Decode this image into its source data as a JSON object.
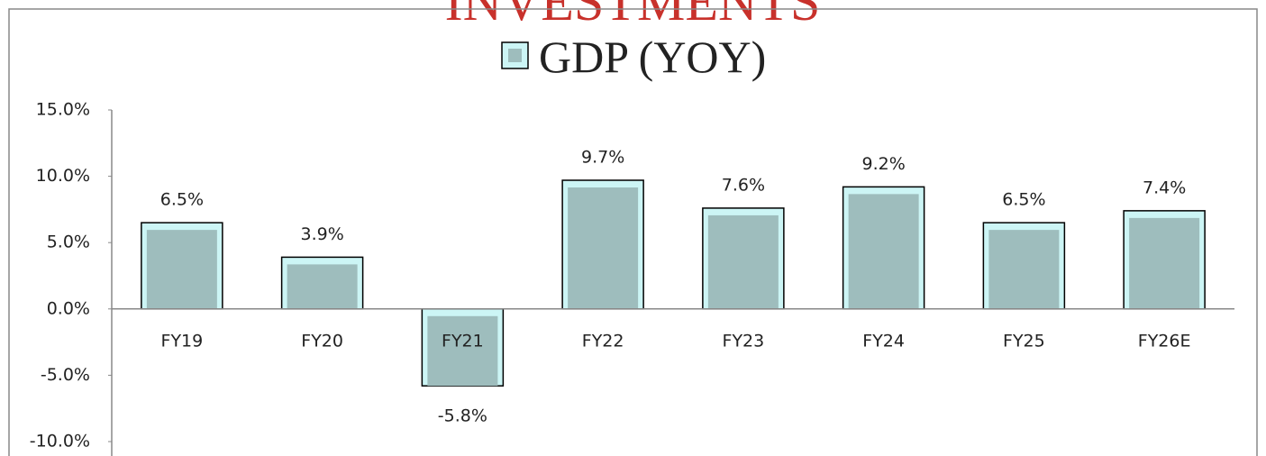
{
  "chart_data": {
    "type": "bar",
    "watermark": "INVESTMENTS",
    "categories": [
      "FY19",
      "FY20",
      "FY21",
      "FY22",
      "FY23",
      "FY24",
      "FY25",
      "FY26E"
    ],
    "series": [
      {
        "name": "GDP (YOY)",
        "color": "#9ebdbd",
        "values": [
          6.5,
          3.9,
          -5.8,
          9.7,
          7.6,
          9.2,
          6.5,
          7.4
        ],
        "value_labels": [
          "6.5%",
          "3.9%",
          "-5.8%",
          "9.7%",
          "7.6%",
          "9.2%",
          "6.5%",
          "7.4%"
        ]
      }
    ],
    "ylim": [
      -10,
      15
    ],
    "yticks": [
      {
        "value": -10,
        "label": "-10.0%"
      },
      {
        "value": -5,
        "label": "-5.0%"
      },
      {
        "value": 0,
        "label": "0.0%"
      },
      {
        "value": 5,
        "label": "5.0%"
      },
      {
        "value": 10,
        "label": "10.0%"
      },
      {
        "value": 15,
        "label": "15.0%"
      }
    ],
    "legend": "top"
  }
}
